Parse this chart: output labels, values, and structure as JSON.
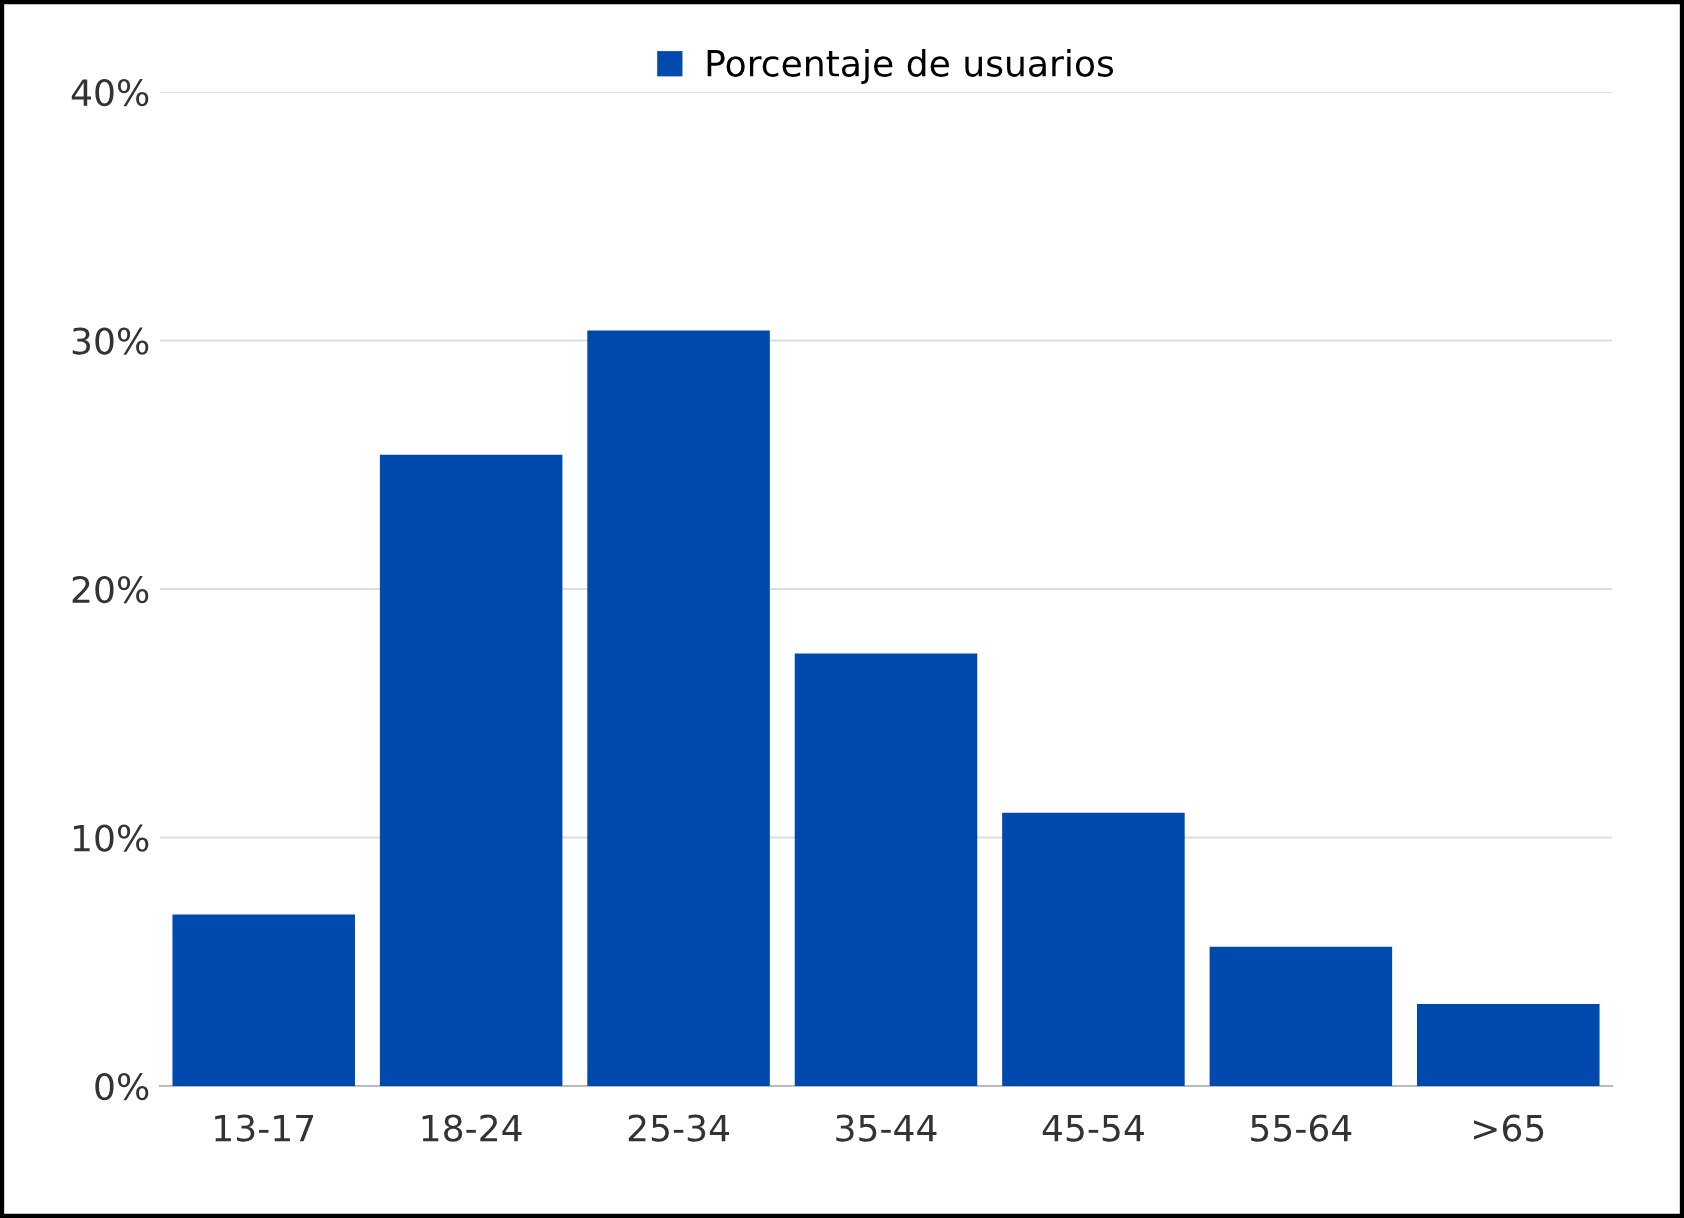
{
  "chart_data": {
    "type": "bar",
    "categories": [
      "13-17",
      "18-24",
      "25-34",
      "35-44",
      "45-54",
      "55-64",
      ">65"
    ],
    "series": [
      {
        "name": "Porcentaje de usuarios",
        "color": "#004aad",
        "values": [
          6.9,
          25.4,
          30.4,
          17.4,
          11.0,
          5.6,
          3.3
        ]
      }
    ],
    "ylim": [
      0,
      40
    ],
    "yticks": [
      {
        "value": 0,
        "label": "0%"
      },
      {
        "value": 10,
        "label": "10%"
      },
      {
        "value": 20,
        "label": "20%"
      },
      {
        "value": 30,
        "label": "30%"
      },
      {
        "value": 40,
        "label": "40%"
      }
    ],
    "grid": "y",
    "legend": "top"
  }
}
